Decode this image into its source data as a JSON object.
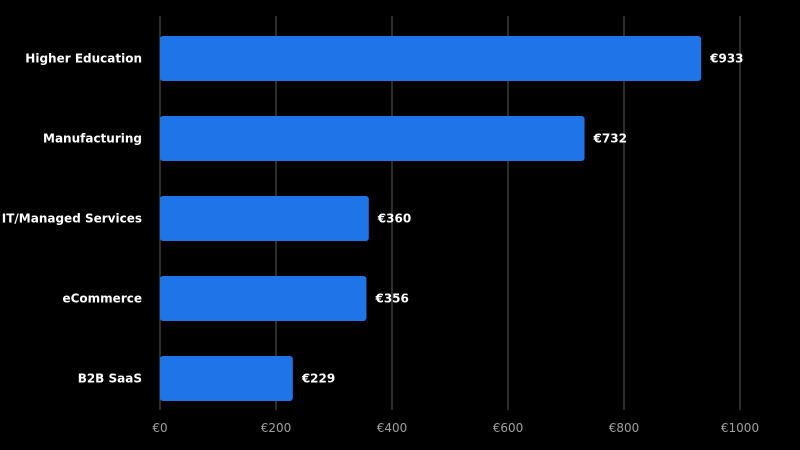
{
  "chart_data": {
    "type": "bar",
    "orientation": "horizontal",
    "categories": [
      "Higher Education",
      "Manufacturing",
      "IT/Managed Services",
      "eCommerce",
      "B2B SaaS"
    ],
    "values": [
      933,
      732,
      360,
      356,
      229
    ],
    "value_labels": [
      "€933",
      "€732",
      "€360",
      "€356",
      "€229"
    ],
    "xlim": [
      0,
      1000
    ],
    "x_ticks": [
      0,
      200,
      400,
      600,
      800,
      1000
    ],
    "x_tick_labels": [
      "€0",
      "€200",
      "€400",
      "€600",
      "€800",
      "€1000"
    ],
    "grid": true,
    "legend": "none",
    "title": "",
    "xlabel": "",
    "ylabel": ""
  },
  "colors": {
    "background": "#000000",
    "bar": "#1f74e8",
    "gridline": "#5a5a5a",
    "label_text": "#ffffff",
    "tick_text": "#a0a0a0"
  }
}
